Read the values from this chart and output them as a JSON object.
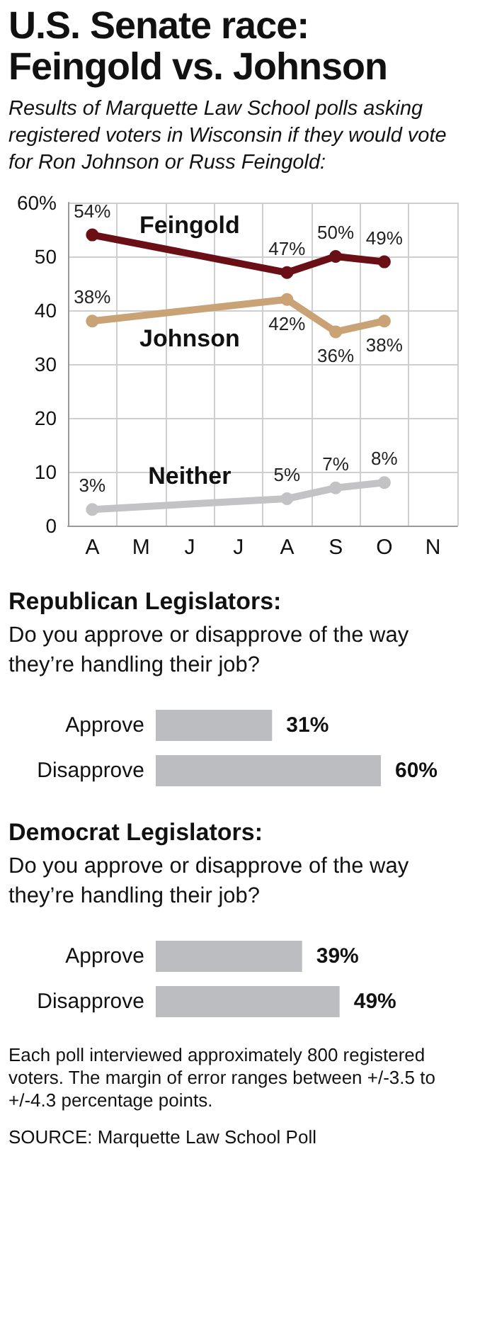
{
  "chart_data": [
    {
      "type": "line",
      "title": "U.S. Senate race: Feingold vs. Johnson",
      "subtitle": "Results of Marquette Law School polls asking registered voters in Wisconsin if they would vote for Ron Johnson or Russ Feingold:",
      "categories": [
        "A",
        "M",
        "J",
        "J",
        "A",
        "S",
        "O",
        "N"
      ],
      "series": [
        {
          "name": "Feingold",
          "color": "#6b0f16",
          "values": [
            54,
            null,
            null,
            null,
            47,
            50,
            49,
            null
          ],
          "value_labels": [
            "54%",
            null,
            null,
            null,
            "47%",
            "50%",
            "49%",
            null
          ]
        },
        {
          "name": "Johnson",
          "color": "#c9a276",
          "values": [
            38,
            null,
            null,
            null,
            42,
            36,
            38,
            null
          ],
          "value_labels": [
            "38%",
            null,
            null,
            null,
            "42%",
            "36%",
            "38%",
            null
          ]
        },
        {
          "name": "Neither",
          "color": "#c3c3c5",
          "values": [
            3,
            null,
            null,
            null,
            5,
            7,
            8,
            null
          ],
          "value_labels": [
            "3%",
            null,
            null,
            null,
            "5%",
            "7%",
            "8%",
            null
          ]
        }
      ],
      "ylim": [
        0,
        60
      ],
      "yticks": [
        0,
        10,
        20,
        30,
        40,
        50,
        {
          "value": 60,
          "label": "60%"
        }
      ],
      "grid": true,
      "legend": false,
      "marker": "circle",
      "line_style": "solid"
    },
    {
      "type": "bar",
      "orientation": "horizontal",
      "title": "Republican Legislators:",
      "subtitle": "Do you approve or disapprove of the way they’re handling their job?",
      "categories": [
        "Approve",
        "Disapprove"
      ],
      "values": [
        31,
        60
      ],
      "value_labels": [
        "31%",
        "60%"
      ],
      "color": "#bcbdc0"
    },
    {
      "type": "bar",
      "orientation": "horizontal",
      "title": "Democrat Legislators:",
      "subtitle": "Do you approve or disapprove of the way they’re handling their job?",
      "categories": [
        "Approve",
        "Disapprove"
      ],
      "values": [
        39,
        49
      ],
      "value_labels": [
        "39%",
        "49%"
      ],
      "color": "#bcbdc0",
      "annotations": [
        "Each poll interviewed approximately 800 registered voters. The margin of error ranges between +/-3.5 to +/-4.3 percentage points.",
        "SOURCE: Marquette Law School Poll"
      ]
    }
  ]
}
